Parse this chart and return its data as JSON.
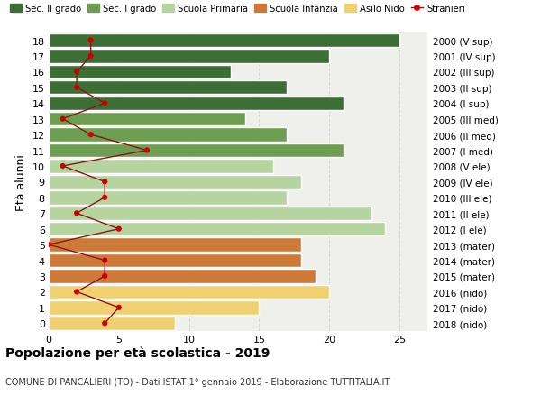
{
  "ages": [
    18,
    17,
    16,
    15,
    14,
    13,
    12,
    11,
    10,
    9,
    8,
    7,
    6,
    5,
    4,
    3,
    2,
    1,
    0
  ],
  "years": [
    "2000 (V sup)",
    "2001 (IV sup)",
    "2002 (III sup)",
    "2003 (II sup)",
    "2004 (I sup)",
    "2005 (III med)",
    "2006 (II med)",
    "2007 (I med)",
    "2008 (V ele)",
    "2009 (IV ele)",
    "2010 (III ele)",
    "2011 (II ele)",
    "2012 (I ele)",
    "2013 (mater)",
    "2014 (mater)",
    "2015 (mater)",
    "2016 (nido)",
    "2017 (nido)",
    "2018 (nido)"
  ],
  "bar_values": [
    25,
    20,
    13,
    17,
    21,
    14,
    17,
    21,
    16,
    18,
    17,
    23,
    24,
    18,
    18,
    19,
    20,
    15,
    9
  ],
  "bar_colors": [
    "#3d6e35",
    "#3d6e35",
    "#3d6e35",
    "#3d6e35",
    "#3d6e35",
    "#6d9e52",
    "#6d9e52",
    "#6d9e52",
    "#b5d4a0",
    "#b5d4a0",
    "#b5d4a0",
    "#b5d4a0",
    "#b5d4a0",
    "#cd7a38",
    "#cd7a38",
    "#cd7a38",
    "#f0d070",
    "#f0d070",
    "#f0d070"
  ],
  "stranieri_values": [
    3,
    3,
    2,
    2,
    4,
    1,
    3,
    7,
    1,
    4,
    4,
    2,
    5,
    0,
    4,
    4,
    2,
    5,
    4
  ],
  "legend_labels": [
    "Sec. II grado",
    "Sec. I grado",
    "Scuola Primaria",
    "Scuola Infanzia",
    "Asilo Nido",
    "Stranieri"
  ],
  "legend_colors": [
    "#3d6e35",
    "#6d9e52",
    "#b5d4a0",
    "#cd7a38",
    "#f0d070",
    "#cc0000"
  ],
  "title": "Popolazione per età scolastica - 2019",
  "subtitle": "COMUNE DI PANCALIERI (TO) - Dati ISTAT 1° gennaio 2019 - Elaborazione TUTTITALIA.IT",
  "ylabel_left": "Età alunni",
  "xlim": [
    0,
    27
  ],
  "xticks": [
    0,
    5,
    10,
    15,
    20,
    25
  ],
  "bg_color": "#ffffff",
  "plot_bg_color": "#efefeb",
  "grid_color": "#d8d8d8",
  "bar_edge_color": "#ffffff",
  "stranieri_line_color": "#8b1818",
  "stranieri_dot_color": "#cc0000",
  "stranieri_dot_size": 20
}
